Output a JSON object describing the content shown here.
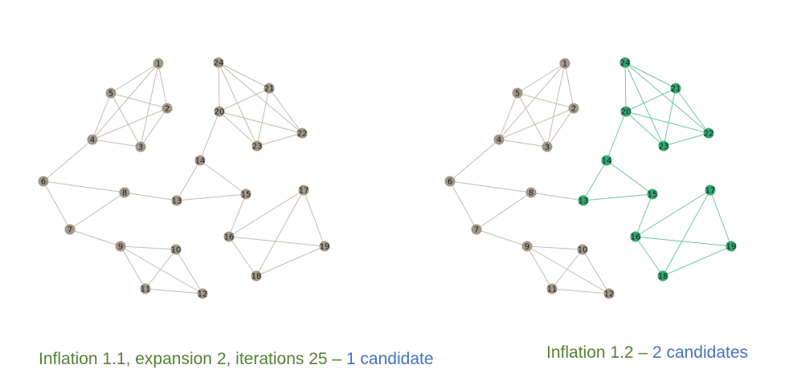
{
  "graphs": [
    {
      "id": "left",
      "caption": {
        "part1": "Inflation 1.1, expansion 2, iterations 25 – ",
        "part2": "1 candidate"
      },
      "highlighted": []
    },
    {
      "id": "right",
      "caption": {
        "part1": "Inflation 1.2 – ",
        "part2": "2 candidates"
      },
      "highlighted": [
        "24",
        "21",
        "20",
        "22",
        "23",
        "14",
        "13",
        "15",
        "17",
        "16",
        "19",
        "18"
      ]
    }
  ],
  "nodes": [
    "1",
    "2",
    "3",
    "4",
    "5",
    "6",
    "7",
    "8",
    "9",
    "10",
    "11",
    "12",
    "13",
    "14",
    "15",
    "16",
    "17",
    "18",
    "19",
    "20",
    "21",
    "22",
    "23",
    "24"
  ],
  "edges": [
    [
      "1",
      "5"
    ],
    [
      "1",
      "4"
    ],
    [
      "1",
      "3"
    ],
    [
      "1",
      "2"
    ],
    [
      "5",
      "2"
    ],
    [
      "5",
      "4"
    ],
    [
      "5",
      "3"
    ],
    [
      "4",
      "2"
    ],
    [
      "4",
      "3"
    ],
    [
      "2",
      "3"
    ],
    [
      "4",
      "6"
    ],
    [
      "6",
      "8"
    ],
    [
      "6",
      "7"
    ],
    [
      "7",
      "8"
    ],
    [
      "7",
      "9"
    ],
    [
      "9",
      "10"
    ],
    [
      "9",
      "11"
    ],
    [
      "9",
      "12"
    ],
    [
      "10",
      "11"
    ],
    [
      "10",
      "12"
    ],
    [
      "11",
      "12"
    ],
    [
      "8",
      "13"
    ],
    [
      "13",
      "14"
    ],
    [
      "13",
      "15"
    ],
    [
      "14",
      "15"
    ],
    [
      "14",
      "20"
    ],
    [
      "24",
      "21"
    ],
    [
      "24",
      "20"
    ],
    [
      "24",
      "23"
    ],
    [
      "24",
      "22"
    ],
    [
      "21",
      "20"
    ],
    [
      "21",
      "23"
    ],
    [
      "21",
      "22"
    ],
    [
      "20",
      "23"
    ],
    [
      "20",
      "22"
    ],
    [
      "23",
      "22"
    ],
    [
      "15",
      "16"
    ],
    [
      "16",
      "17"
    ],
    [
      "16",
      "18"
    ],
    [
      "16",
      "19"
    ],
    [
      "17",
      "18"
    ],
    [
      "17",
      "19"
    ],
    [
      "18",
      "19"
    ]
  ],
  "colors": {
    "node_default": "#a29889",
    "node_highlight": "#34a872",
    "edge_default": "#c2bbb0",
    "edge_highlight": "#6fc7a0"
  }
}
